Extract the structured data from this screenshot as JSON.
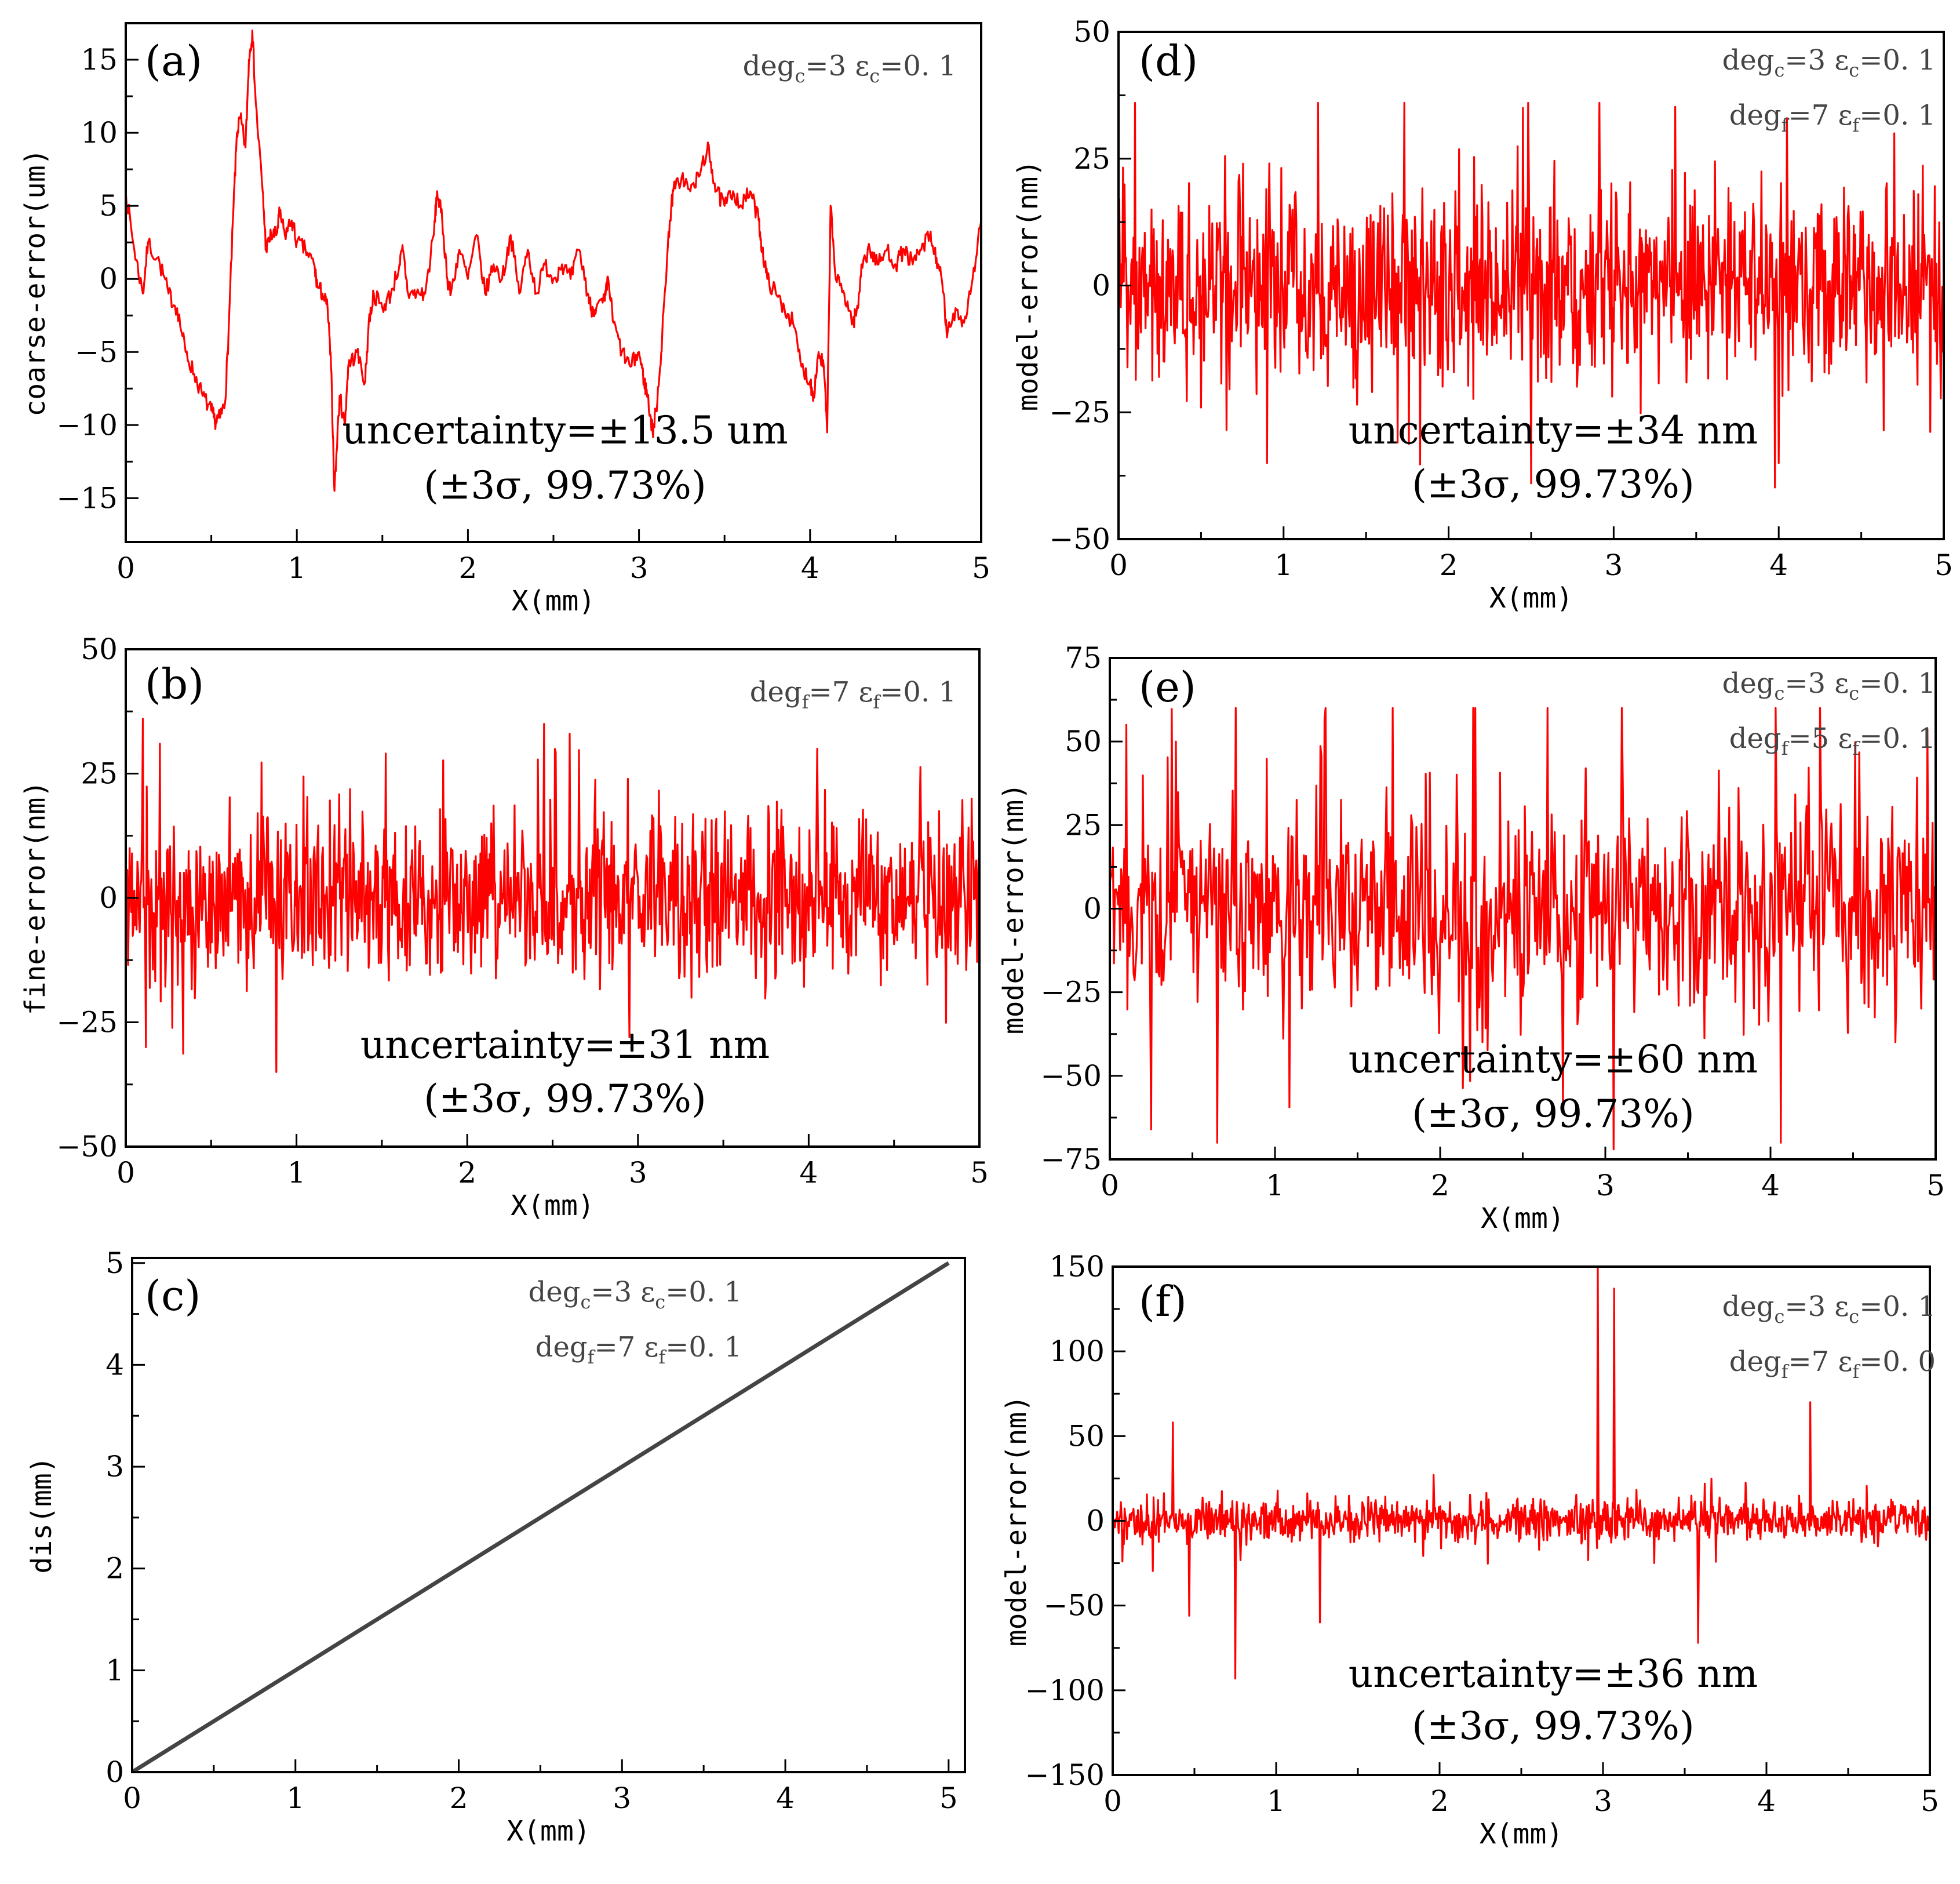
{
  "colors": {
    "error_series": "#ff0000",
    "dis_series": "#444444",
    "axes": "#000000",
    "params": "#444444"
  },
  "chart_data": [
    {
      "id": "a",
      "type": "line",
      "letter": "(a)",
      "xlabel": "X(mm)",
      "ylabel": "coarse-error(um)",
      "xlim": [
        0,
        5
      ],
      "ylim": [
        -18,
        17.5
      ],
      "xticks": [
        0,
        1,
        2,
        3,
        4,
        5
      ],
      "xtick_labels": [
        "0",
        "1",
        "2",
        "3",
        "4",
        "5"
      ],
      "yticks": [
        -15,
        -10,
        -5,
        0,
        5,
        10,
        15
      ],
      "ytick_labels": [
        "−15",
        "−10",
        "−5",
        "0",
        "5",
        "10",
        "15"
      ],
      "params": [
        {
          "a": "deg",
          "as": "c",
          "b": "=3  ε",
          "bs": "c",
          "c": "=0. 1"
        }
      ],
      "uncertainty": "uncertainty=±13.5 um",
      "sigma": "(±3σ, 99.73%)",
      "series": {
        "name": "coarse-error",
        "kind": "path",
        "points": [
          [
            0,
            6
          ],
          [
            0.05,
            2
          ],
          [
            0.1,
            -1
          ],
          [
            0.13,
            2.5
          ],
          [
            0.2,
            1
          ],
          [
            0.25,
            -1
          ],
          [
            0.3,
            -2
          ],
          [
            0.35,
            -5
          ],
          [
            0.4,
            -6.5
          ],
          [
            0.45,
            -8
          ],
          [
            0.5,
            -9
          ],
          [
            0.52,
            -9.7
          ],
          [
            0.55,
            -9.5
          ],
          [
            0.58,
            -8.5
          ],
          [
            0.6,
            -4
          ],
          [
            0.63,
            5
          ],
          [
            0.65,
            10
          ],
          [
            0.67,
            11
          ],
          [
            0.7,
            9
          ],
          [
            0.72,
            15
          ],
          [
            0.74,
            17
          ],
          [
            0.76,
            12
          ],
          [
            0.8,
            6
          ],
          [
            0.82,
            2
          ],
          [
            0.85,
            3
          ],
          [
            0.88,
            3
          ],
          [
            0.9,
            4.5
          ],
          [
            0.93,
            3
          ],
          [
            0.97,
            4
          ],
          [
            1.0,
            2.5
          ],
          [
            1.05,
            2
          ],
          [
            1.1,
            1
          ],
          [
            1.12,
            -0.5
          ],
          [
            1.15,
            -1
          ],
          [
            1.18,
            -2
          ],
          [
            1.2,
            -6
          ],
          [
            1.22,
            -14.5
          ],
          [
            1.25,
            -8
          ],
          [
            1.28,
            -10
          ],
          [
            1.3,
            -6
          ],
          [
            1.35,
            -5
          ],
          [
            1.4,
            -7
          ],
          [
            1.42,
            -3
          ],
          [
            1.45,
            -1
          ],
          [
            1.5,
            -2
          ],
          [
            1.55,
            -1
          ],
          [
            1.6,
            1
          ],
          [
            1.62,
            2
          ],
          [
            1.65,
            -1
          ],
          [
            1.7,
            -1
          ],
          [
            1.75,
            -1
          ],
          [
            1.8,
            3
          ],
          [
            1.82,
            6
          ],
          [
            1.85,
            4
          ],
          [
            1.88,
            0
          ],
          [
            1.9,
            -1
          ],
          [
            1.95,
            2
          ],
          [
            2.0,
            0
          ],
          [
            2.05,
            3
          ],
          [
            2.1,
            -1
          ],
          [
            2.15,
            1
          ],
          [
            2.2,
            0
          ],
          [
            2.25,
            3
          ],
          [
            2.3,
            -1
          ],
          [
            2.35,
            2
          ],
          [
            2.4,
            -1
          ],
          [
            2.45,
            1
          ],
          [
            2.5,
            0
          ],
          [
            2.55,
            1
          ],
          [
            2.6,
            0
          ],
          [
            2.65,
            2
          ],
          [
            2.7,
            -1
          ],
          [
            2.72,
            -2
          ],
          [
            2.75,
            -2
          ],
          [
            2.8,
            -1.5
          ],
          [
            2.82,
            0
          ],
          [
            2.85,
            -3
          ],
          [
            2.9,
            -5
          ],
          [
            2.95,
            -6
          ],
          [
            3.0,
            -5
          ],
          [
            3.03,
            -7
          ],
          [
            3.05,
            -8
          ],
          [
            3.08,
            -10.5
          ],
          [
            3.1,
            -9
          ],
          [
            3.13,
            -5
          ],
          [
            3.15,
            -1
          ],
          [
            3.18,
            4
          ],
          [
            3.2,
            6
          ],
          [
            3.25,
            7
          ],
          [
            3.3,
            6
          ],
          [
            3.35,
            7
          ],
          [
            3.4,
            9
          ],
          [
            3.42,
            8
          ],
          [
            3.45,
            6
          ],
          [
            3.5,
            5
          ],
          [
            3.55,
            6
          ],
          [
            3.6,
            5
          ],
          [
            3.65,
            6
          ],
          [
            3.7,
            4
          ],
          [
            3.72,
            2
          ],
          [
            3.75,
            0
          ],
          [
            3.8,
            -1
          ],
          [
            3.85,
            -2
          ],
          [
            3.9,
            -3
          ],
          [
            3.95,
            -6
          ],
          [
            4.0,
            -7
          ],
          [
            4.02,
            -8
          ],
          [
            4.05,
            -5
          ],
          [
            4.08,
            -6
          ],
          [
            4.1,
            -10.5
          ],
          [
            4.12,
            5
          ],
          [
            4.15,
            0
          ],
          [
            4.2,
            -1
          ],
          [
            4.25,
            -3
          ],
          [
            4.28,
            -2
          ],
          [
            4.3,
            1
          ],
          [
            4.35,
            2
          ],
          [
            4.4,
            1
          ],
          [
            4.45,
            2
          ],
          [
            4.5,
            1
          ],
          [
            4.55,
            2
          ],
          [
            4.6,
            1
          ],
          [
            4.65,
            2
          ],
          [
            4.7,
            3
          ],
          [
            4.72,
            2
          ],
          [
            4.75,
            1
          ],
          [
            4.78,
            -1
          ],
          [
            4.8,
            -4
          ],
          [
            4.85,
            -2
          ],
          [
            4.9,
            -3
          ],
          [
            4.95,
            0
          ],
          [
            5.0,
            4
          ]
        ],
        "jitter": 0.6
      }
    },
    {
      "id": "b",
      "type": "line",
      "letter": "(b)",
      "xlabel": "X(mm)",
      "ylabel": "fine-error(nm)",
      "xlim": [
        0,
        5
      ],
      "ylim": [
        -50,
        50
      ],
      "xticks": [
        0,
        1,
        2,
        3,
        4,
        5
      ],
      "xtick_labels": [
        "0",
        "1",
        "2",
        "3",
        "4",
        "5"
      ],
      "yticks": [
        -50,
        -25,
        0,
        25,
        50
      ],
      "ytick_labels": [
        "−50",
        "−25",
        "0",
        "25",
        "50"
      ],
      "params": [
        {
          "a": "deg",
          "as": "f",
          "b": "=7  ε",
          "bs": "f",
          "c": "=0. 1"
        }
      ],
      "uncertainty": "uncertainty=±31 nm",
      "sigma": "(±3σ, 99.73%)",
      "series": {
        "name": "fine-error",
        "kind": "noise",
        "n": 1100,
        "sigma": 8,
        "peak": 36,
        "low": -35,
        "seed": 11,
        "spikes": [
          [
            0.1,
            36
          ],
          [
            0.12,
            -30
          ],
          [
            0.2,
            31
          ],
          [
            0.88,
            -35
          ],
          [
            2.45,
            35
          ],
          [
            2.95,
            -28
          ],
          [
            2.6,
            33
          ],
          [
            4.05,
            30
          ]
        ]
      }
    },
    {
      "id": "c",
      "type": "line",
      "letter": "(c)",
      "xlabel": "X(mm)",
      "ylabel": "dis(mm)",
      "xlim": [
        0,
        5.1
      ],
      "ylim": [
        0,
        5.05
      ],
      "xticks": [
        0,
        1,
        2,
        3,
        4,
        5
      ],
      "xtick_labels": [
        "0",
        "1",
        "2",
        "3",
        "4",
        "5"
      ],
      "yticks": [
        0,
        1,
        2,
        3,
        4,
        5
      ],
      "ytick_labels": [
        "0",
        "1",
        "2",
        "3",
        "4",
        "5"
      ],
      "params": [
        {
          "a": "deg",
          "as": "c",
          "b": "=3  ε",
          "bs": "c",
          "c": "=0. 1"
        },
        {
          "a": "deg",
          "as": "f",
          "b": "=7  ε",
          "bs": "f",
          "c": "=0. 1"
        }
      ],
      "series": {
        "name": "dis",
        "kind": "path",
        "points": [
          [
            0,
            0
          ],
          [
            5,
            5
          ]
        ],
        "jitter": 0
      }
    },
    {
      "id": "d",
      "type": "line",
      "letter": "(d)",
      "xlabel": "X(mm)",
      "ylabel": "model-error(nm)",
      "xlim": [
        0,
        5
      ],
      "ylim": [
        -50,
        50
      ],
      "xticks": [
        0,
        1,
        2,
        3,
        4,
        5
      ],
      "xtick_labels": [
        "0",
        "1",
        "2",
        "3",
        "4",
        "5"
      ],
      "yticks": [
        -50,
        -25,
        0,
        25,
        50
      ],
      "ytick_labels": [
        "−50",
        "−25",
        "0",
        "25",
        "50"
      ],
      "params": [
        {
          "a": "deg",
          "as": "c",
          "b": "=3  ε",
          "bs": "c",
          "c": "=0. 1"
        },
        {
          "a": "deg",
          "as": "f",
          "b": "=7  ε",
          "bs": "f",
          "c": "=0. 1"
        }
      ],
      "uncertainty": "uncertainty=±34 nm",
      "sigma": "(±3σ, 99.73%)",
      "series": {
        "name": "model-error",
        "kind": "noise",
        "n": 1100,
        "sigma": 9,
        "peak": 36,
        "low": -40,
        "seed": 23,
        "spikes": [
          [
            0.1,
            36
          ],
          [
            0.9,
            -35
          ],
          [
            2.45,
            35
          ],
          [
            2.5,
            -39
          ],
          [
            4.05,
            33
          ],
          [
            4.0,
            -35
          ],
          [
            4.7,
            30
          ]
        ]
      }
    },
    {
      "id": "e",
      "type": "line",
      "letter": "(e)",
      "xlabel": "X(mm)",
      "ylabel": "model-error(nm)",
      "xlim": [
        0,
        5
      ],
      "ylim": [
        -75,
        75
      ],
      "xticks": [
        0,
        1,
        2,
        3,
        4,
        5
      ],
      "xtick_labels": [
        "0",
        "1",
        "2",
        "3",
        "4",
        "5"
      ],
      "yticks": [
        -75,
        -50,
        -25,
        0,
        25,
        50,
        75
      ],
      "ytick_labels": [
        "−75",
        "−50",
        "−25",
        "0",
        "25",
        "50",
        "75"
      ],
      "params": [
        {
          "a": "deg",
          "as": "c",
          "b": "=3  ε",
          "bs": "c",
          "c": "=0. 1"
        },
        {
          "a": "deg",
          "as": "f",
          "b": "=5  ε",
          "bs": "f",
          "c": "=0. 1"
        }
      ],
      "uncertainty": "uncertainty=±60 nm",
      "sigma": "(±3σ, 99.73%)",
      "series": {
        "name": "model-error",
        "kind": "noise",
        "n": 800,
        "sigma": 16,
        "peak": 60,
        "low": -70,
        "seed": 37,
        "spikes": [
          [
            0.25,
            -66
          ],
          [
            0.65,
            -70
          ],
          [
            1.3,
            57
          ],
          [
            2.65,
            60
          ],
          [
            3.05,
            -72
          ],
          [
            4.3,
            60
          ],
          [
            0.4,
            50
          ],
          [
            0.1,
            55
          ]
        ]
      }
    },
    {
      "id": "f",
      "type": "line",
      "letter": "(f)",
      "xlabel": "X(mm)",
      "ylabel": "model-error(nm)",
      "xlim": [
        0,
        5
      ],
      "ylim": [
        -150,
        150
      ],
      "xticks": [
        0,
        1,
        2,
        3,
        4,
        5
      ],
      "xtick_labels": [
        "0",
        "1",
        "2",
        "3",
        "4",
        "5"
      ],
      "yticks": [
        -150,
        -100,
        -50,
        0,
        50,
        100,
        150
      ],
      "ytick_labels": [
        "−150",
        "−100",
        "−50",
        "0",
        "50",
        "100",
        "150"
      ],
      "params": [
        {
          "a": "deg",
          "as": "c",
          "b": "=3  ε",
          "bs": "c",
          "c": "=0. 1"
        },
        {
          "a": "deg",
          "as": "f",
          "b": "=7  ε",
          "bs": "f",
          "c": "=0. 0"
        }
      ],
      "uncertainty": "uncertainty=±36 nm",
      "sigma": "(±3σ, 99.73%)",
      "series": {
        "name": "model-error",
        "kind": "noise",
        "n": 1100,
        "sigma": 6,
        "peak": 30,
        "low": -30,
        "seed": 51,
        "spikes": [
          [
            0.37,
            58
          ],
          [
            0.47,
            -56
          ],
          [
            0.75,
            -93
          ],
          [
            1.27,
            -60
          ],
          [
            2.97,
            150
          ],
          [
            3.07,
            137
          ],
          [
            3.58,
            -72
          ],
          [
            4.27,
            70
          ]
        ]
      }
    }
  ]
}
